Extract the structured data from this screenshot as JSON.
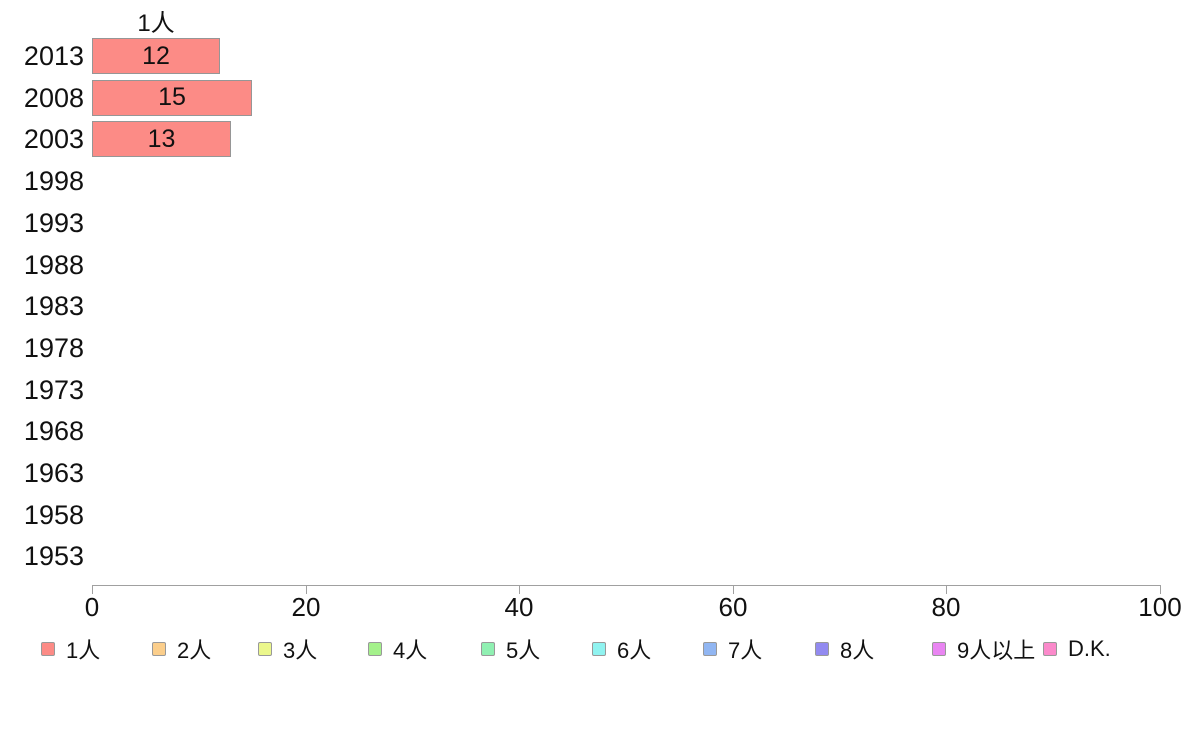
{
  "chart_data": {
    "type": "bar",
    "orientation": "horizontal",
    "title": "1人",
    "categories": [
      "2013",
      "2008",
      "2003",
      "1998",
      "1993",
      "1988",
      "1983",
      "1978",
      "1973",
      "1968",
      "1963",
      "1958",
      "1953"
    ],
    "series": [
      {
        "name": "1人",
        "color": "#FC8B86",
        "values": [
          12,
          15,
          13,
          null,
          null,
          null,
          null,
          null,
          null,
          null,
          null,
          null,
          null
        ]
      },
      {
        "name": "2人",
        "color": "#FBCE8B",
        "values": []
      },
      {
        "name": "3人",
        "color": "#EBF78C",
        "values": []
      },
      {
        "name": "4人",
        "color": "#A4F18B",
        "values": []
      },
      {
        "name": "5人",
        "color": "#90F0B2",
        "values": []
      },
      {
        "name": "6人",
        "color": "#90F3F0",
        "values": []
      },
      {
        "name": "7人",
        "color": "#91B6F2",
        "values": []
      },
      {
        "name": "8人",
        "color": "#928AF0",
        "values": []
      },
      {
        "name": "9人以上",
        "color": "#E985F2",
        "values": []
      },
      {
        "name": "D.K.",
        "color": "#FB8ACB",
        "values": []
      }
    ],
    "bar_value_labels": [
      "12",
      "15",
      "13"
    ],
    "xlabel": "",
    "ylabel": "",
    "xlim": [
      0,
      100
    ],
    "x_ticks": [
      0,
      20,
      40,
      60,
      80,
      100
    ],
    "grid": false,
    "legend_position": "bottom",
    "colors": {
      "bar_border": "#969696",
      "axis": "#A0A0A0",
      "text": "#111111",
      "background": "#FFFFFF"
    }
  }
}
